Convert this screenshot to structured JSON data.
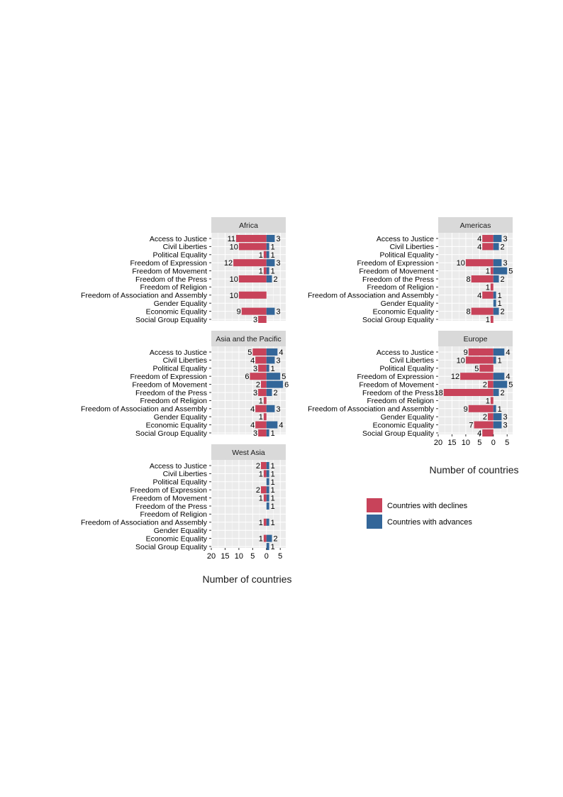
{
  "chart_data": {
    "type": "bar",
    "categories": [
      "Access to Justice",
      "Civil Liberties",
      "Political Equality",
      "Freedom of Expression",
      "Freedom of Movement",
      "Freedom of the Press",
      "Freedom of Religion",
      "Freedom of Association and Assembly",
      "Gender Equality",
      "Economic Equality",
      "Social Group Equality"
    ],
    "xlabel": "Number of countries",
    "x_ticks": [
      "20",
      "15",
      "10",
      "5",
      "0",
      "5"
    ],
    "xlim": [
      -20,
      7
    ],
    "grid": true,
    "legend_position": "right",
    "series_names": [
      "Countries with declines",
      "Countries with advances"
    ],
    "colors": {
      "declines": "#c8435a",
      "advances": "#336699",
      "panel_bg": "#ebebeb",
      "strip_bg": "#d9d9d9",
      "grid": "#ffffff"
    },
    "panels": [
      {
        "name": "Africa",
        "declines": [
          11,
          10,
          1,
          12,
          1,
          10,
          null,
          10,
          null,
          9,
          3
        ],
        "advances": [
          3,
          1,
          1,
          3,
          1,
          2,
          null,
          null,
          null,
          3,
          null
        ]
      },
      {
        "name": "Americas",
        "declines": [
          4,
          4,
          null,
          10,
          1,
          8,
          1,
          4,
          null,
          8,
          1
        ],
        "advances": [
          3,
          2,
          null,
          3,
          5,
          2,
          null,
          1,
          1,
          2,
          null
        ]
      },
      {
        "name": "Asia and the Pacific",
        "declines": [
          5,
          4,
          3,
          6,
          2,
          3,
          1,
          4,
          1,
          4,
          3
        ],
        "advances": [
          4,
          3,
          1,
          5,
          6,
          2,
          null,
          3,
          null,
          4,
          1
        ]
      },
      {
        "name": "Europe",
        "declines": [
          9,
          10,
          5,
          12,
          2,
          18,
          1,
          9,
          2,
          7,
          4
        ],
        "advances": [
          4,
          1,
          null,
          4,
          5,
          2,
          null,
          1,
          3,
          3,
          null
        ]
      },
      {
        "name": "West Asia",
        "declines": [
          2,
          1,
          null,
          2,
          1,
          null,
          null,
          1,
          null,
          1,
          null
        ],
        "advances": [
          1,
          1,
          1,
          1,
          1,
          1,
          null,
          1,
          null,
          2,
          1
        ]
      }
    ]
  }
}
